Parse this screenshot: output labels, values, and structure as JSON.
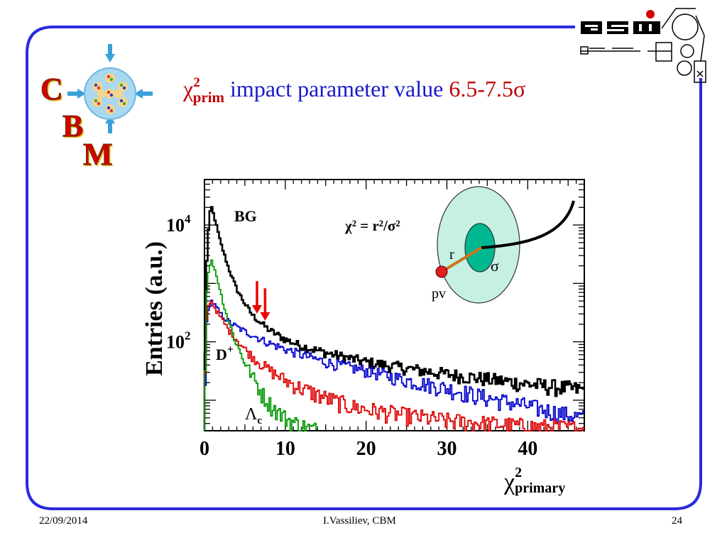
{
  "title": {
    "chi": "χ",
    "sup": "2",
    "sub": "prim",
    "middle": "impact parameter value",
    "range": "6.5-7.5σ"
  },
  "logos": {
    "cbm": [
      "C",
      "B",
      "M"
    ],
    "gsi": "GSI"
  },
  "footer": {
    "date": "22/09/2014",
    "author": "I.Vassiliev, CBM",
    "page": "24"
  },
  "colors": {
    "frame": "#2a2adf",
    "title_red": "#c00000",
    "title_blue": "#1a1acc",
    "bg": "#000000",
    "dplus": "#0000cc",
    "lambda_c": "#009900",
    "red_series": "#dd0000",
    "outer_ellipse": "#c6f0e4",
    "inner_ellipse": "#00b890",
    "arrows": "#ee0000"
  },
  "chart_data": {
    "type": "line",
    "xlabel": "χ",
    "xlabel_sup": "2",
    "xlabel_sub": "primary",
    "ylabel": "Entries (a.u.)",
    "xlim": [
      0,
      47
    ],
    "ylim": [
      3,
      60000
    ],
    "y_scale": "log",
    "x_ticks": [
      0,
      10,
      20,
      30,
      40
    ],
    "y_ticks": [
      {
        "value": 100,
        "base": "10",
        "exp": "2"
      },
      {
        "value": 10000,
        "base": "10",
        "exp": "4"
      }
    ],
    "series": [
      {
        "name": "BG",
        "color": "#000000",
        "x": [
          0,
          0.3,
          0.6,
          0.9,
          1.2,
          1.6,
          2,
          2.5,
          3,
          4,
          5,
          6,
          7,
          8,
          10,
          12,
          15,
          18,
          20,
          25,
          30,
          35,
          40,
          45,
          47
        ],
        "y": [
          10,
          2500,
          15000,
          20000,
          14000,
          8500,
          5000,
          3000,
          1800,
          800,
          450,
          280,
          210,
          160,
          110,
          85,
          65,
          52,
          45,
          35,
          28,
          23,
          19,
          16,
          15
        ]
      },
      {
        "name": "D",
        "color": "#0000cc",
        "x": [
          0,
          0.3,
          0.6,
          0.9,
          1.3,
          2,
          3,
          4,
          5,
          6,
          7,
          8,
          10,
          12,
          15,
          20,
          25,
          30,
          35,
          40,
          44,
          47
        ],
        "y": [
          8,
          200,
          420,
          500,
          420,
          300,
          220,
          180,
          150,
          130,
          110,
          95,
          75,
          60,
          45,
          32,
          22,
          16,
          11,
          8,
          6,
          5
        ]
      },
      {
        "name": "",
        "color": "#dd0000",
        "x": [
          0,
          0.3,
          0.6,
          0.9,
          1.3,
          2,
          3,
          4,
          5,
          6,
          7,
          8,
          10,
          12,
          15,
          18,
          20,
          25,
          30,
          35,
          40,
          47
        ],
        "y": [
          8,
          250,
          500,
          480,
          380,
          260,
          160,
          110,
          75,
          55,
          42,
          33,
          22,
          16,
          11,
          8,
          7,
          5.5,
          4.5,
          4,
          3.6,
          3.3
        ]
      },
      {
        "name": "Λ",
        "color": "#009900",
        "x": [
          0,
          0.3,
          0.6,
          0.9,
          1.2,
          1.6,
          2,
          2.5,
          3,
          4,
          5,
          6,
          7,
          8,
          9,
          10,
          11,
          12,
          13,
          14
        ],
        "y": [
          8,
          800,
          2000,
          2400,
          1900,
          1200,
          700,
          380,
          220,
          90,
          45,
          25,
          14,
          9,
          6.5,
          5,
          4.2,
          3.7,
          3.3,
          3.1
        ]
      }
    ],
    "annotations": {
      "bg_label": "BG",
      "dplus_label": "D",
      "dplus_sup": "+",
      "lambda_label": "Λ",
      "lambda_sub": "c",
      "formula": "χ² = r²/σ²",
      "r_label": "r",
      "sigma_label": "σ",
      "pv_label": "pv",
      "arrows_x": [
        6.5,
        7.5
      ]
    }
  }
}
